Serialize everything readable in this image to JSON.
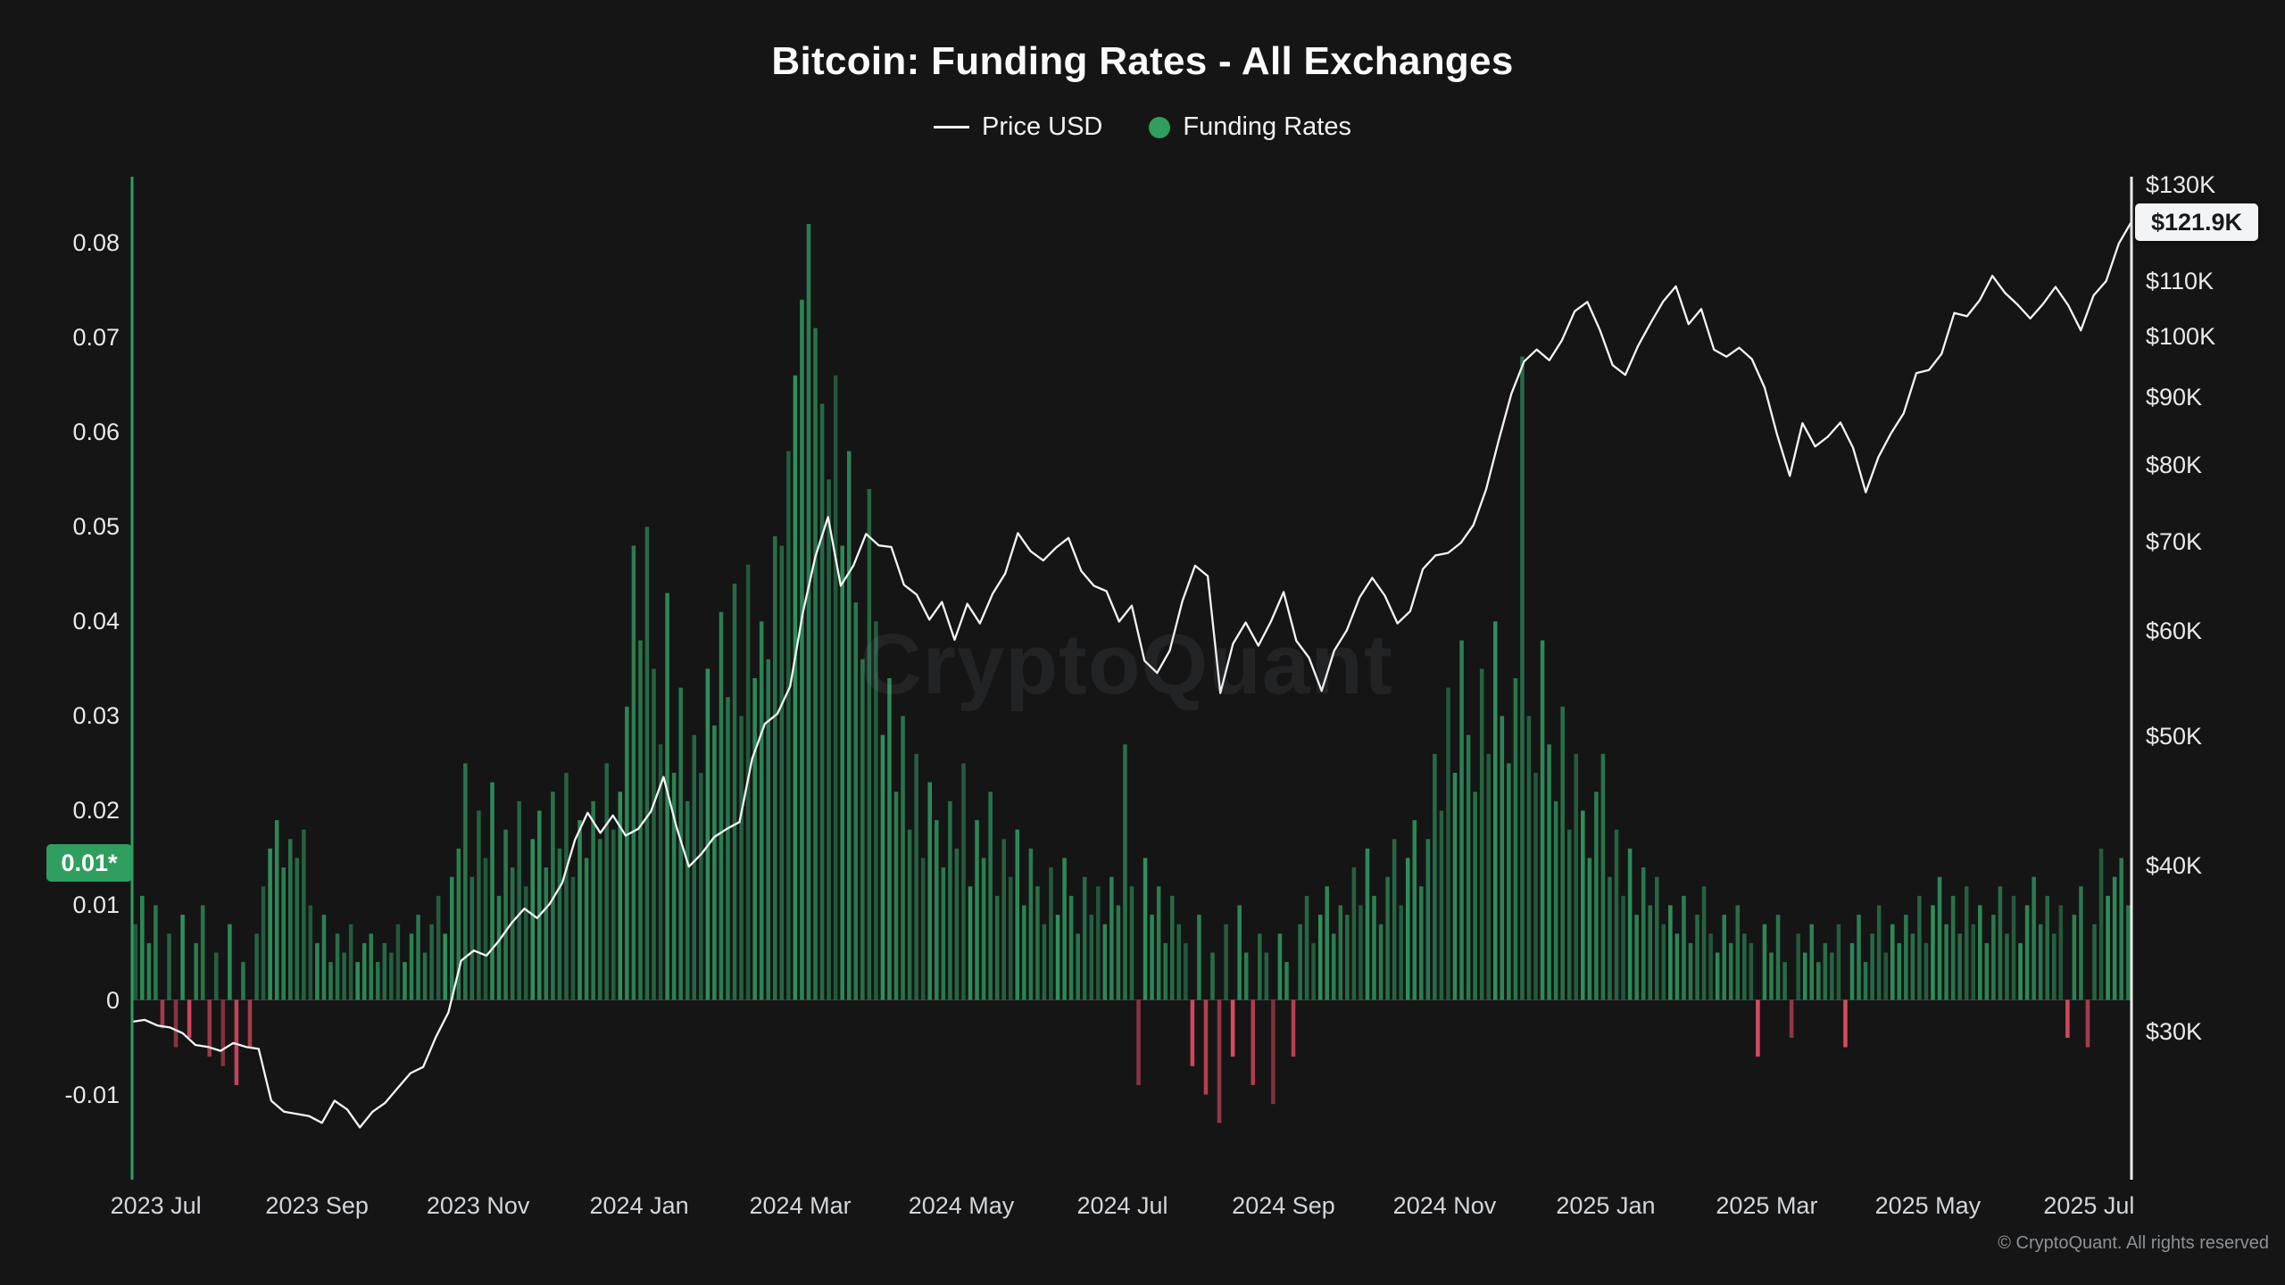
{
  "watermark": "CryptoQuant",
  "footer": "© CryptoQuant. All rights reserved",
  "colors": {
    "background": "#151515",
    "text": "#f2f3f4",
    "axis_green": "#2f9e5f",
    "bar_positive": "#2f8f5b",
    "bar_negative": "#d84a5f",
    "price_line": "#f5f5f5",
    "right_axis_line": "#ececec",
    "badge_bg": "#f3f4f5",
    "badge_text": "#17191c"
  },
  "chart_data": {
    "type": "mixed_bar_line",
    "title": "Bitcoin: Funding Rates - All Exchanges",
    "legend": [
      "Price USD",
      "Funding Rates"
    ],
    "grid": "off",
    "legend_position": "top-center",
    "x_axis": {
      "labels": [
        "2023 Jul",
        "2023 Sep",
        "2023 Nov",
        "2024 Jan",
        "2024 Mar",
        "2024 May",
        "2024 Jul",
        "2024 Sep",
        "2024 Nov",
        "2025 Jan",
        "2025 Mar",
        "2025 May",
        "2025 Jul"
      ],
      "first_frac": 0.0119,
      "step_frac": 0.08057
    },
    "left_axis": {
      "name": "Funding Rates",
      "scale": "linear",
      "range": [
        -0.019,
        0.087
      ],
      "tick_values": [
        0.08,
        0.07,
        0.06,
        0.05,
        0.04,
        0.03,
        0.02,
        0.01,
        0,
        -0.01
      ],
      "tick_labels": [
        "0.08",
        "0.07",
        "0.06",
        "0.05",
        "0.04",
        "0.03",
        "0.02",
        "0.01",
        "0",
        "-0.01"
      ],
      "current_badge": "0.01*",
      "current_value": 0.0145
    },
    "right_axis": {
      "name": "Price USD",
      "scale": "log",
      "unit": "thousand USD",
      "range": [
        23.2,
        131.8
      ],
      "tick_values": [
        130,
        110,
        100,
        90,
        80,
        70,
        60,
        50,
        40,
        30
      ],
      "tick_labels": [
        "$130K",
        "$110K",
        "$100K",
        "$90K",
        "$80K",
        "$70K",
        "$60K",
        "$50K",
        "$40K",
        "$30K"
      ],
      "current_badge": "$121.9K",
      "current_value": 121.9
    },
    "series": [
      {
        "name": "Funding Rates",
        "type": "bar",
        "axis": "left",
        "color_positive": "#2f8f5b",
        "color_negative": "#d84a5f",
        "values": [
          0.008,
          0.011,
          0.006,
          0.01,
          -0.003,
          0.007,
          -0.005,
          0.009,
          -0.004,
          0.006,
          0.01,
          -0.006,
          0.005,
          -0.007,
          0.008,
          -0.009,
          0.004,
          -0.005,
          0.007,
          0.012,
          0.016,
          0.019,
          0.014,
          0.017,
          0.015,
          0.018,
          0.01,
          0.006,
          0.009,
          0.004,
          0.007,
          0.005,
          0.008,
          0.004,
          0.006,
          0.007,
          0.004,
          0.006,
          0.005,
          0.008,
          0.004,
          0.007,
          0.009,
          0.005,
          0.008,
          0.011,
          0.007,
          0.013,
          0.016,
          0.025,
          0.013,
          0.02,
          0.015,
          0.023,
          0.011,
          0.018,
          0.014,
          0.021,
          0.012,
          0.017,
          0.02,
          0.014,
          0.022,
          0.016,
          0.024,
          0.013,
          0.019,
          0.015,
          0.021,
          0.017,
          0.025,
          0.018,
          0.022,
          0.031,
          0.048,
          0.038,
          0.05,
          0.035,
          0.027,
          0.043,
          0.024,
          0.033,
          0.021,
          0.028,
          0.024,
          0.035,
          0.029,
          0.041,
          0.032,
          0.044,
          0.03,
          0.046,
          0.034,
          0.04,
          0.036,
          0.049,
          0.048,
          0.058,
          0.066,
          0.074,
          0.082,
          0.071,
          0.063,
          0.055,
          0.066,
          0.048,
          0.058,
          0.042,
          0.036,
          0.054,
          0.04,
          0.028,
          0.034,
          0.022,
          0.03,
          0.018,
          0.026,
          0.015,
          0.023,
          0.019,
          0.014,
          0.021,
          0.016,
          0.025,
          0.012,
          0.019,
          0.015,
          0.022,
          0.011,
          0.017,
          0.013,
          0.018,
          0.01,
          0.016,
          0.012,
          0.008,
          0.014,
          0.009,
          0.015,
          0.011,
          0.007,
          0.013,
          0.009,
          0.012,
          0.008,
          0.013,
          0.01,
          0.027,
          0.012,
          -0.009,
          0.015,
          0.009,
          0.012,
          0.006,
          0.011,
          0.008,
          0.006,
          -0.007,
          0.009,
          -0.01,
          0.005,
          -0.013,
          0.008,
          -0.006,
          0.01,
          0.005,
          -0.009,
          0.007,
          0.005,
          -0.011,
          0.007,
          0.004,
          -0.006,
          0.008,
          0.011,
          0.006,
          0.009,
          0.012,
          0.007,
          0.01,
          0.009,
          0.014,
          0.01,
          0.016,
          0.011,
          0.008,
          0.013,
          0.017,
          0.01,
          0.015,
          0.019,
          0.012,
          0.017,
          0.026,
          0.02,
          0.033,
          0.024,
          0.038,
          0.028,
          0.022,
          0.035,
          0.026,
          0.04,
          0.03,
          0.025,
          0.034,
          0.068,
          0.03,
          0.024,
          0.038,
          0.027,
          0.021,
          0.031,
          0.018,
          0.026,
          0.02,
          0.015,
          0.022,
          0.026,
          0.013,
          0.018,
          0.011,
          0.016,
          0.009,
          0.014,
          0.01,
          0.013,
          0.008,
          0.01,
          0.007,
          0.011,
          0.006,
          0.009,
          0.012,
          0.007,
          0.005,
          0.009,
          0.006,
          0.01,
          0.007,
          0.006,
          -0.006,
          0.008,
          0.005,
          0.009,
          0.004,
          -0.004,
          0.007,
          0.005,
          0.008,
          0.004,
          0.006,
          0.005,
          0.008,
          -0.005,
          0.006,
          0.009,
          0.004,
          0.007,
          0.01,
          0.005,
          0.008,
          0.006,
          0.009,
          0.007,
          0.011,
          0.006,
          0.01,
          0.013,
          0.008,
          0.011,
          0.007,
          0.012,
          0.008,
          0.01,
          0.006,
          0.009,
          0.012,
          0.007,
          0.011,
          0.006,
          0.01,
          0.013,
          0.008,
          0.011,
          0.007,
          0.01,
          -0.004,
          0.009,
          0.012,
          -0.005,
          0.008,
          0.016,
          0.011,
          0.013,
          0.015,
          0.01
        ]
      },
      {
        "name": "Price USD",
        "type": "line",
        "axis": "right",
        "color": "#f5f5f5",
        "values": [
          30.5,
          30.6,
          30.3,
          30.2,
          29.9,
          29.3,
          29.2,
          29.0,
          29.4,
          29.2,
          29.1,
          26.6,
          26.1,
          26.0,
          25.9,
          25.6,
          26.6,
          26.2,
          25.4,
          26.1,
          26.5,
          27.2,
          27.9,
          28.2,
          29.7,
          31.0,
          33.9,
          34.5,
          34.2,
          35.1,
          36.2,
          37.1,
          36.5,
          37.4,
          38.8,
          41.8,
          43.8,
          42.3,
          43.6,
          42.1,
          42.6,
          43.9,
          46.6,
          42.8,
          39.9,
          40.8,
          42.0,
          42.6,
          43.1,
          48.1,
          51.1,
          52.0,
          54.5,
          61.9,
          68.3,
          73.1,
          64.9,
          67.2,
          71.0,
          69.6,
          69.4,
          65.0,
          63.9,
          61.2,
          63.1,
          59.1,
          62.9,
          60.8,
          64.0,
          66.3,
          71.1,
          68.9,
          67.8,
          69.3,
          70.5,
          66.6,
          64.9,
          64.3,
          61.0,
          62.7,
          57.0,
          55.8,
          58.0,
          63.2,
          67.2,
          66.0,
          53.9,
          58.7,
          60.9,
          58.5,
          61.0,
          64.2,
          59.0,
          57.3,
          54.1,
          58.0,
          60.1,
          63.6,
          65.8,
          63.8,
          60.8,
          62.1,
          66.8,
          68.4,
          68.7,
          69.9,
          72.1,
          76.7,
          83.5,
          90.5,
          95.7,
          97.7,
          95.9,
          99.3,
          104.4,
          106.1,
          101.0,
          95.1,
          93.5,
          98.3,
          102.3,
          106.2,
          109.0,
          102.1,
          104.8,
          97.7,
          96.5,
          98.0,
          96.1,
          91.5,
          84.3,
          78.5,
          86.0,
          82.6,
          84.0,
          86.1,
          82.4,
          76.3,
          81.1,
          84.5,
          87.5,
          93.8,
          94.3,
          97.0,
          104.1,
          103.5,
          106.4,
          111.0,
          107.8,
          105.6,
          103.1,
          105.7,
          108.9,
          105.5,
          101.0,
          107.3,
          110.0,
          117.4,
          121.9
        ]
      }
    ]
  }
}
